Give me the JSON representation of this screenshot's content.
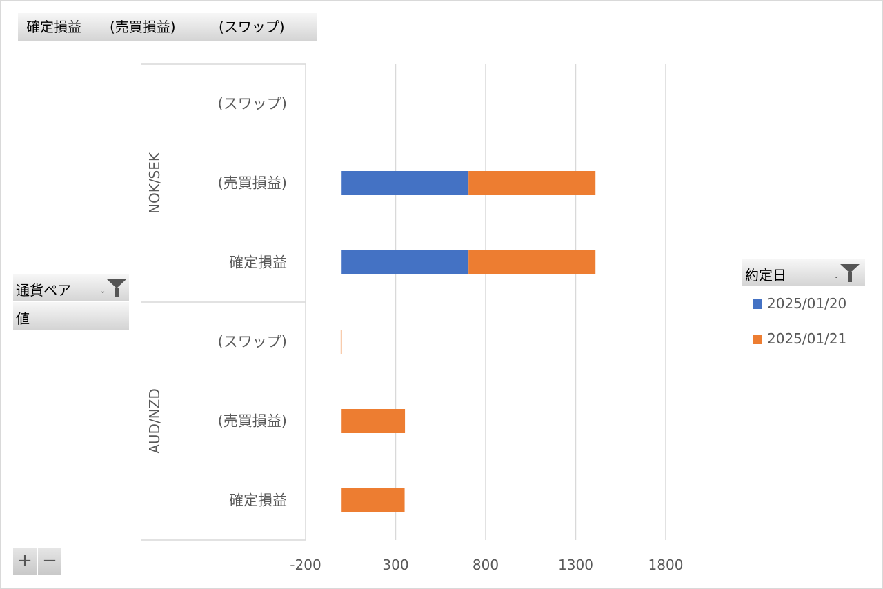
{
  "pivot_buttons": {
    "values_fields": [
      "確定損益",
      "(売買損益)",
      "(スワップ)"
    ],
    "row_field": "通貨ペア",
    "values_label": "値",
    "legend_field": "約定日",
    "expand_label": "+",
    "collapse_label": "−"
  },
  "colors": {
    "2025/01/20": "#4472c4",
    "2025/01/21": "#ed7d31",
    "grid": "#d9d9d9"
  },
  "chart_data": {
    "type": "bar",
    "orientation": "horizontal",
    "stacked": true,
    "groups": [
      {
        "name": "NOK/SEK",
        "categories": [
          "(スワップ)",
          "(売買損益)",
          "確定損益"
        ]
      },
      {
        "name": "AUD/NZD",
        "categories": [
          "(スワップ)",
          "(売買損益)",
          "確定損益"
        ]
      }
    ],
    "series": [
      {
        "name": "2025/01/20",
        "values": [
          [
            0,
            705,
            705
          ],
          [
            0,
            0,
            0
          ]
        ]
      },
      {
        "name": "2025/01/21",
        "values": [
          [
            0,
            705,
            705
          ],
          [
            -5,
            352,
            350
          ]
        ]
      }
    ],
    "xlim": [
      -200,
      1800
    ],
    "xticks": [
      -200,
      300,
      800,
      1300,
      1800
    ],
    "grid": true,
    "legend": {
      "title": "約定日",
      "position": "right"
    }
  }
}
